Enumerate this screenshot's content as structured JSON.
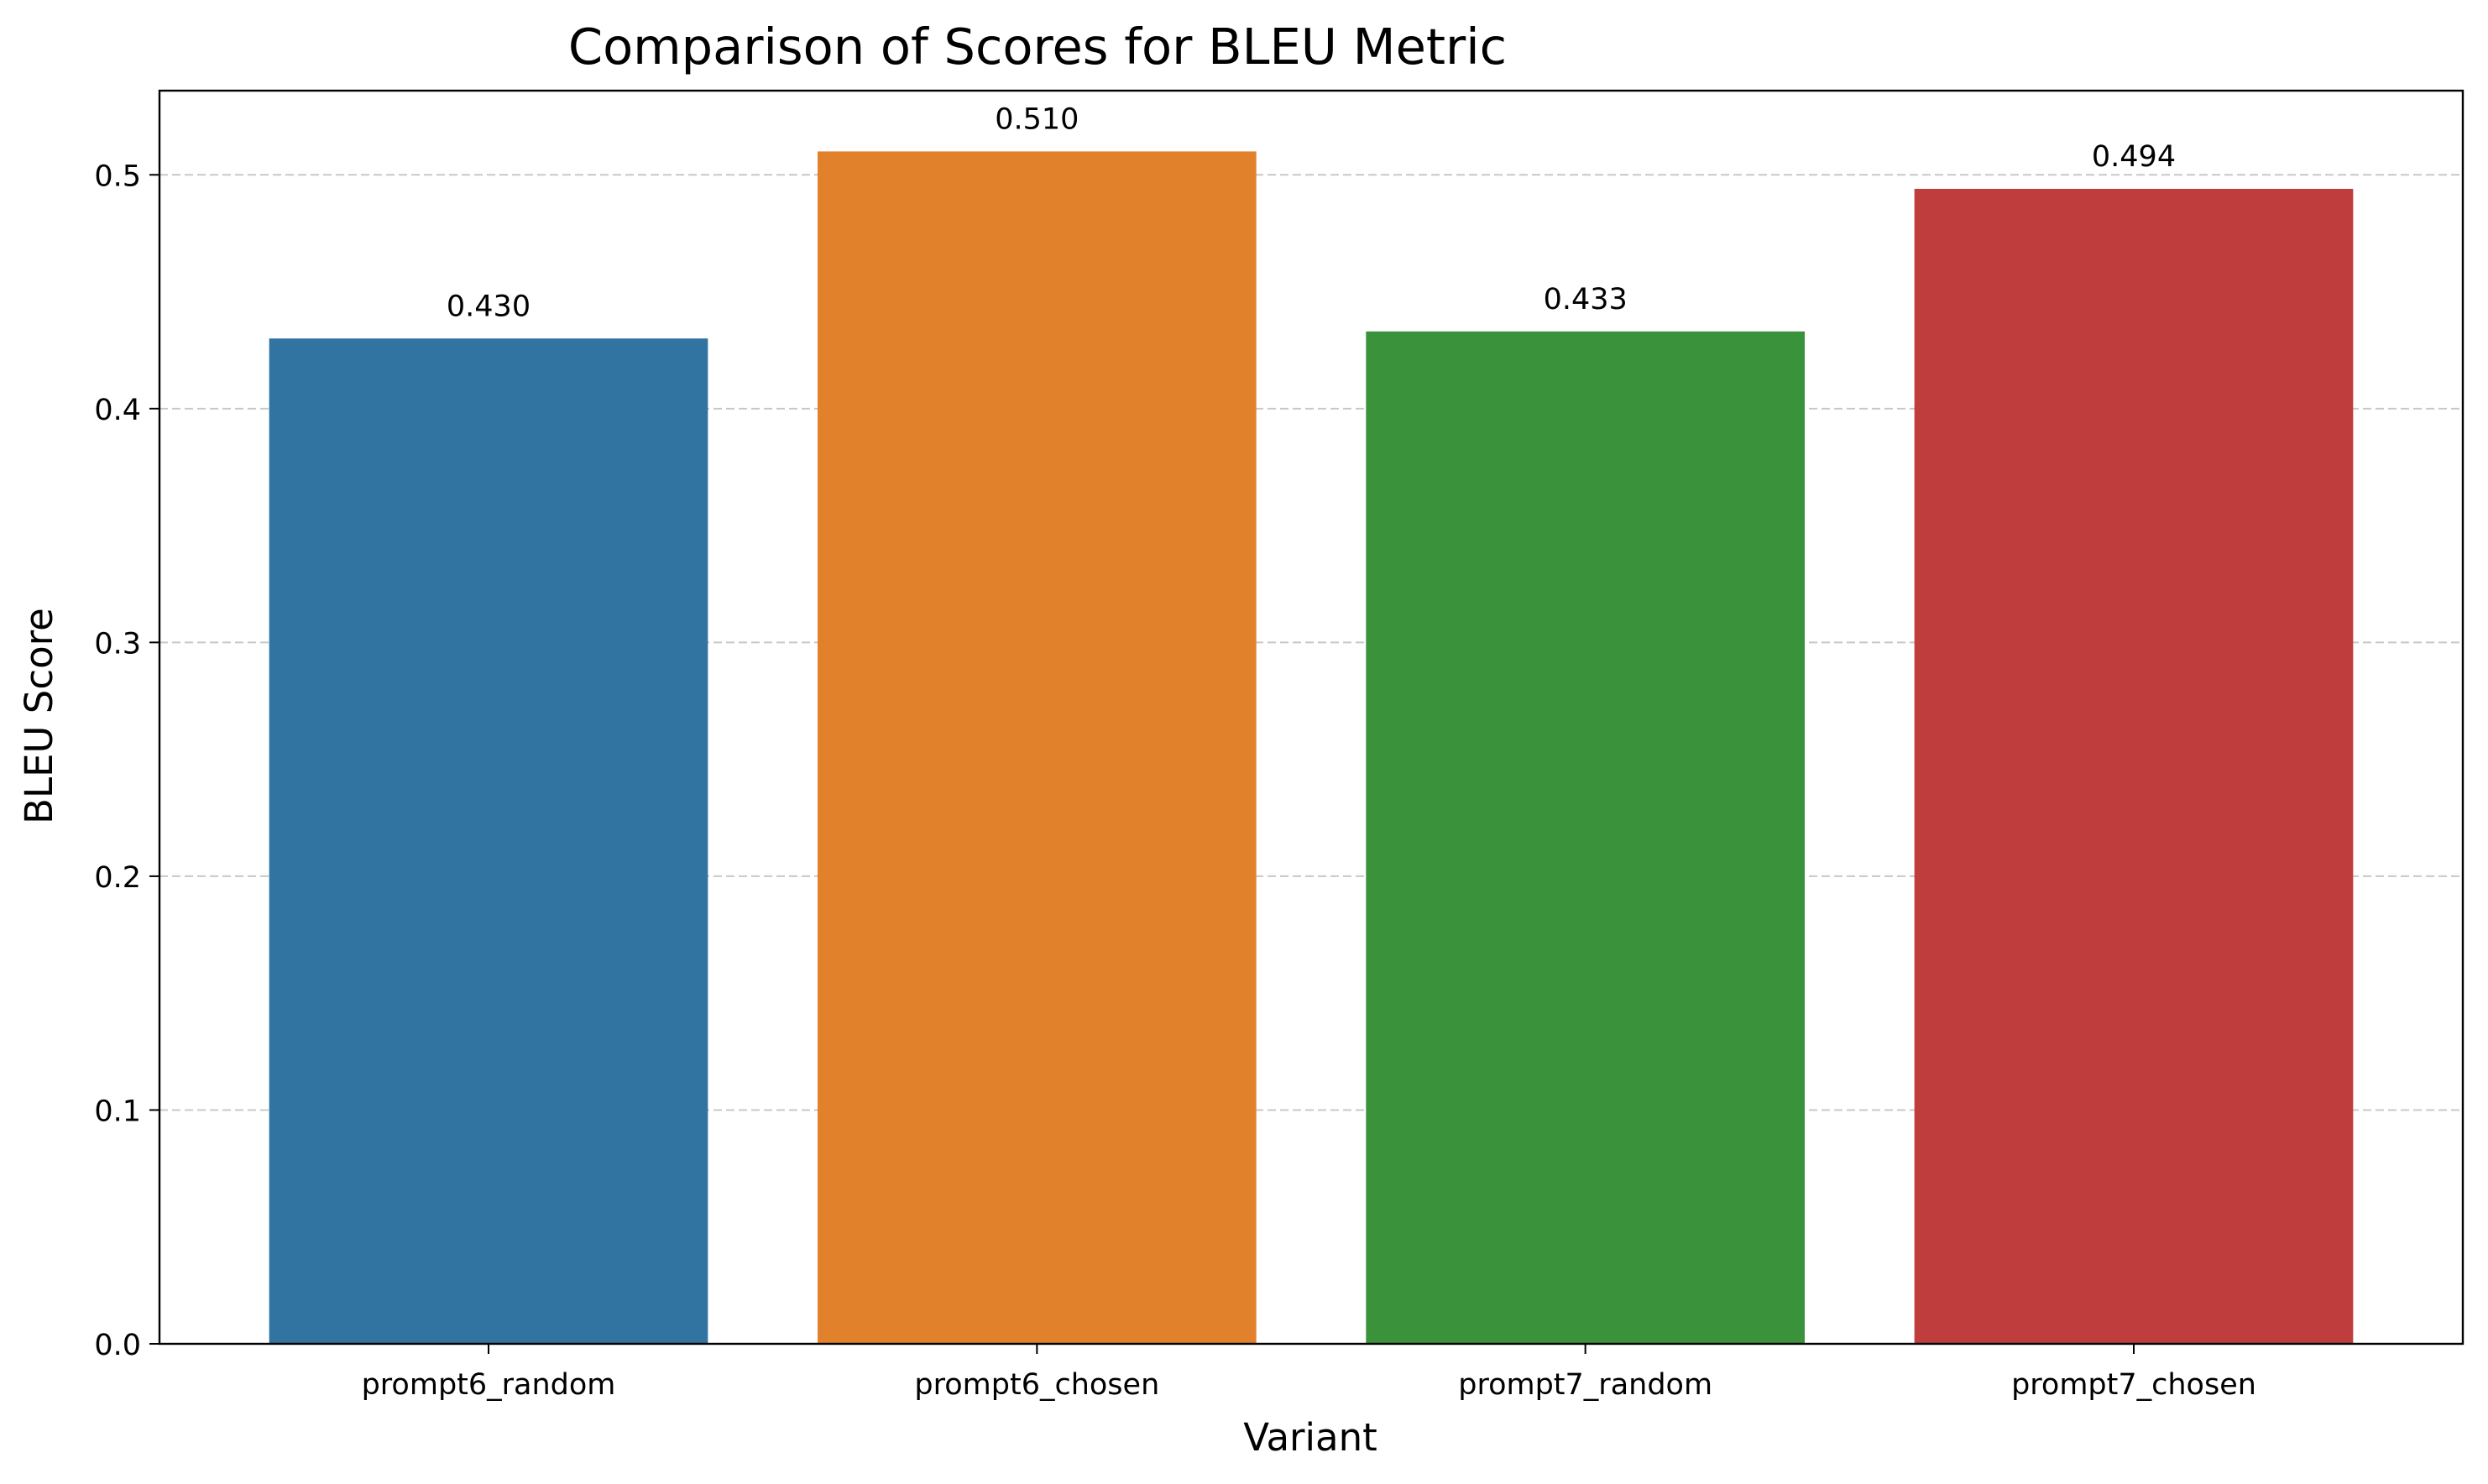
{
  "chart_data": {
    "type": "bar",
    "title": "Comparison of Scores for BLEU Metric",
    "xlabel": "Variant",
    "ylabel": "BLEU Score",
    "categories": [
      "prompt6_random",
      "prompt6_chosen",
      "prompt7_random",
      "prompt7_chosen"
    ],
    "values": [
      0.43,
      0.51,
      0.433,
      0.494
    ],
    "value_labels": [
      "0.430",
      "0.510",
      "0.433",
      "0.494"
    ],
    "colors": [
      "#3274a1",
      "#e1812c",
      "#3a923a",
      "#c03d3e"
    ],
    "ylim": [
      0,
      0.536
    ],
    "yticks": [
      0.0,
      0.1,
      0.2,
      0.3,
      0.4,
      0.5
    ],
    "ytick_labels": [
      "0.0",
      "0.1",
      "0.2",
      "0.3",
      "0.4",
      "0.5"
    ],
    "grid": "y-dashed",
    "legend": "none"
  }
}
